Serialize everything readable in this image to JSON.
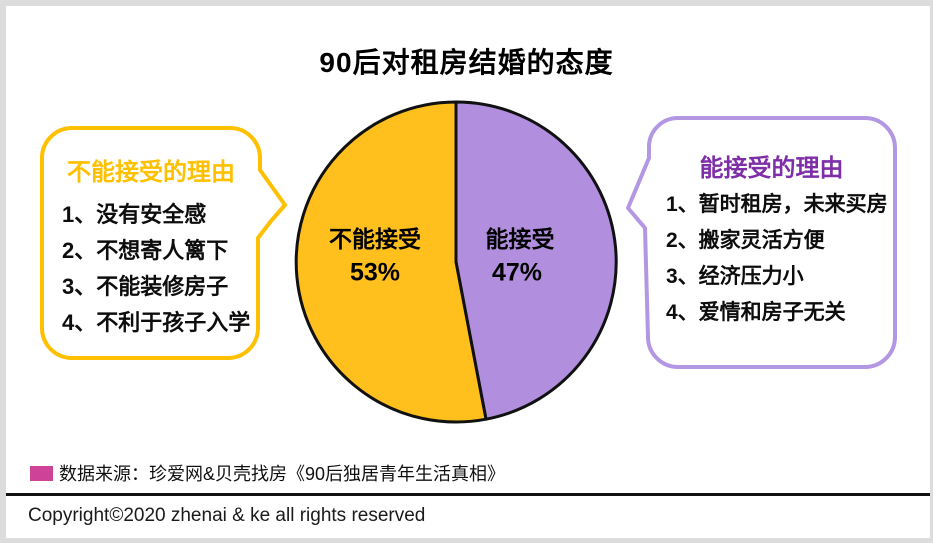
{
  "page": {
    "title": "90后对租房结婚的态度",
    "source_note": "数据来源：珍爱网&贝壳找房《90后独居青年生活真相》",
    "copyright": "Copyright©2020 zhenai & ke all rights reserved"
  },
  "colors": {
    "reject_fill": "#FFC01E",
    "accept_fill": "#B18FDE",
    "reject_accent": "#FFC000",
    "accept_border": "#B497E2",
    "accept_title": "#7D2EA8",
    "source_bullet": "#CE4397",
    "pie_outline": "#111111"
  },
  "chart_data": {
    "type": "pie",
    "title": "90后对租房结婚的态度",
    "unit": "%",
    "start_angle_deg": 0,
    "direction": "clockwise",
    "slices": [
      {
        "label": "能接受",
        "value": 47,
        "display": "47%",
        "color": "#B18FDE"
      },
      {
        "label": "不能接受",
        "value": 53,
        "display": "53%",
        "color": "#FFC01E"
      }
    ],
    "legend_position": "none",
    "annotations": {
      "reject_reasons_title": "不能接受的理由",
      "accept_reasons_title": "能接受的理由"
    }
  },
  "reject_bubble": {
    "title": "不能接受的理由",
    "items": [
      "1、没有安全感",
      "2、不想寄人篱下",
      "3、不能装修房子",
      "4、不利于孩子入学"
    ]
  },
  "accept_bubble": {
    "title": "能接受的理由",
    "items": [
      "1、暂时租房，未来买房",
      "2、搬家灵活方便",
      "3、经济压力小",
      "4、爱情和房子无关"
    ]
  }
}
